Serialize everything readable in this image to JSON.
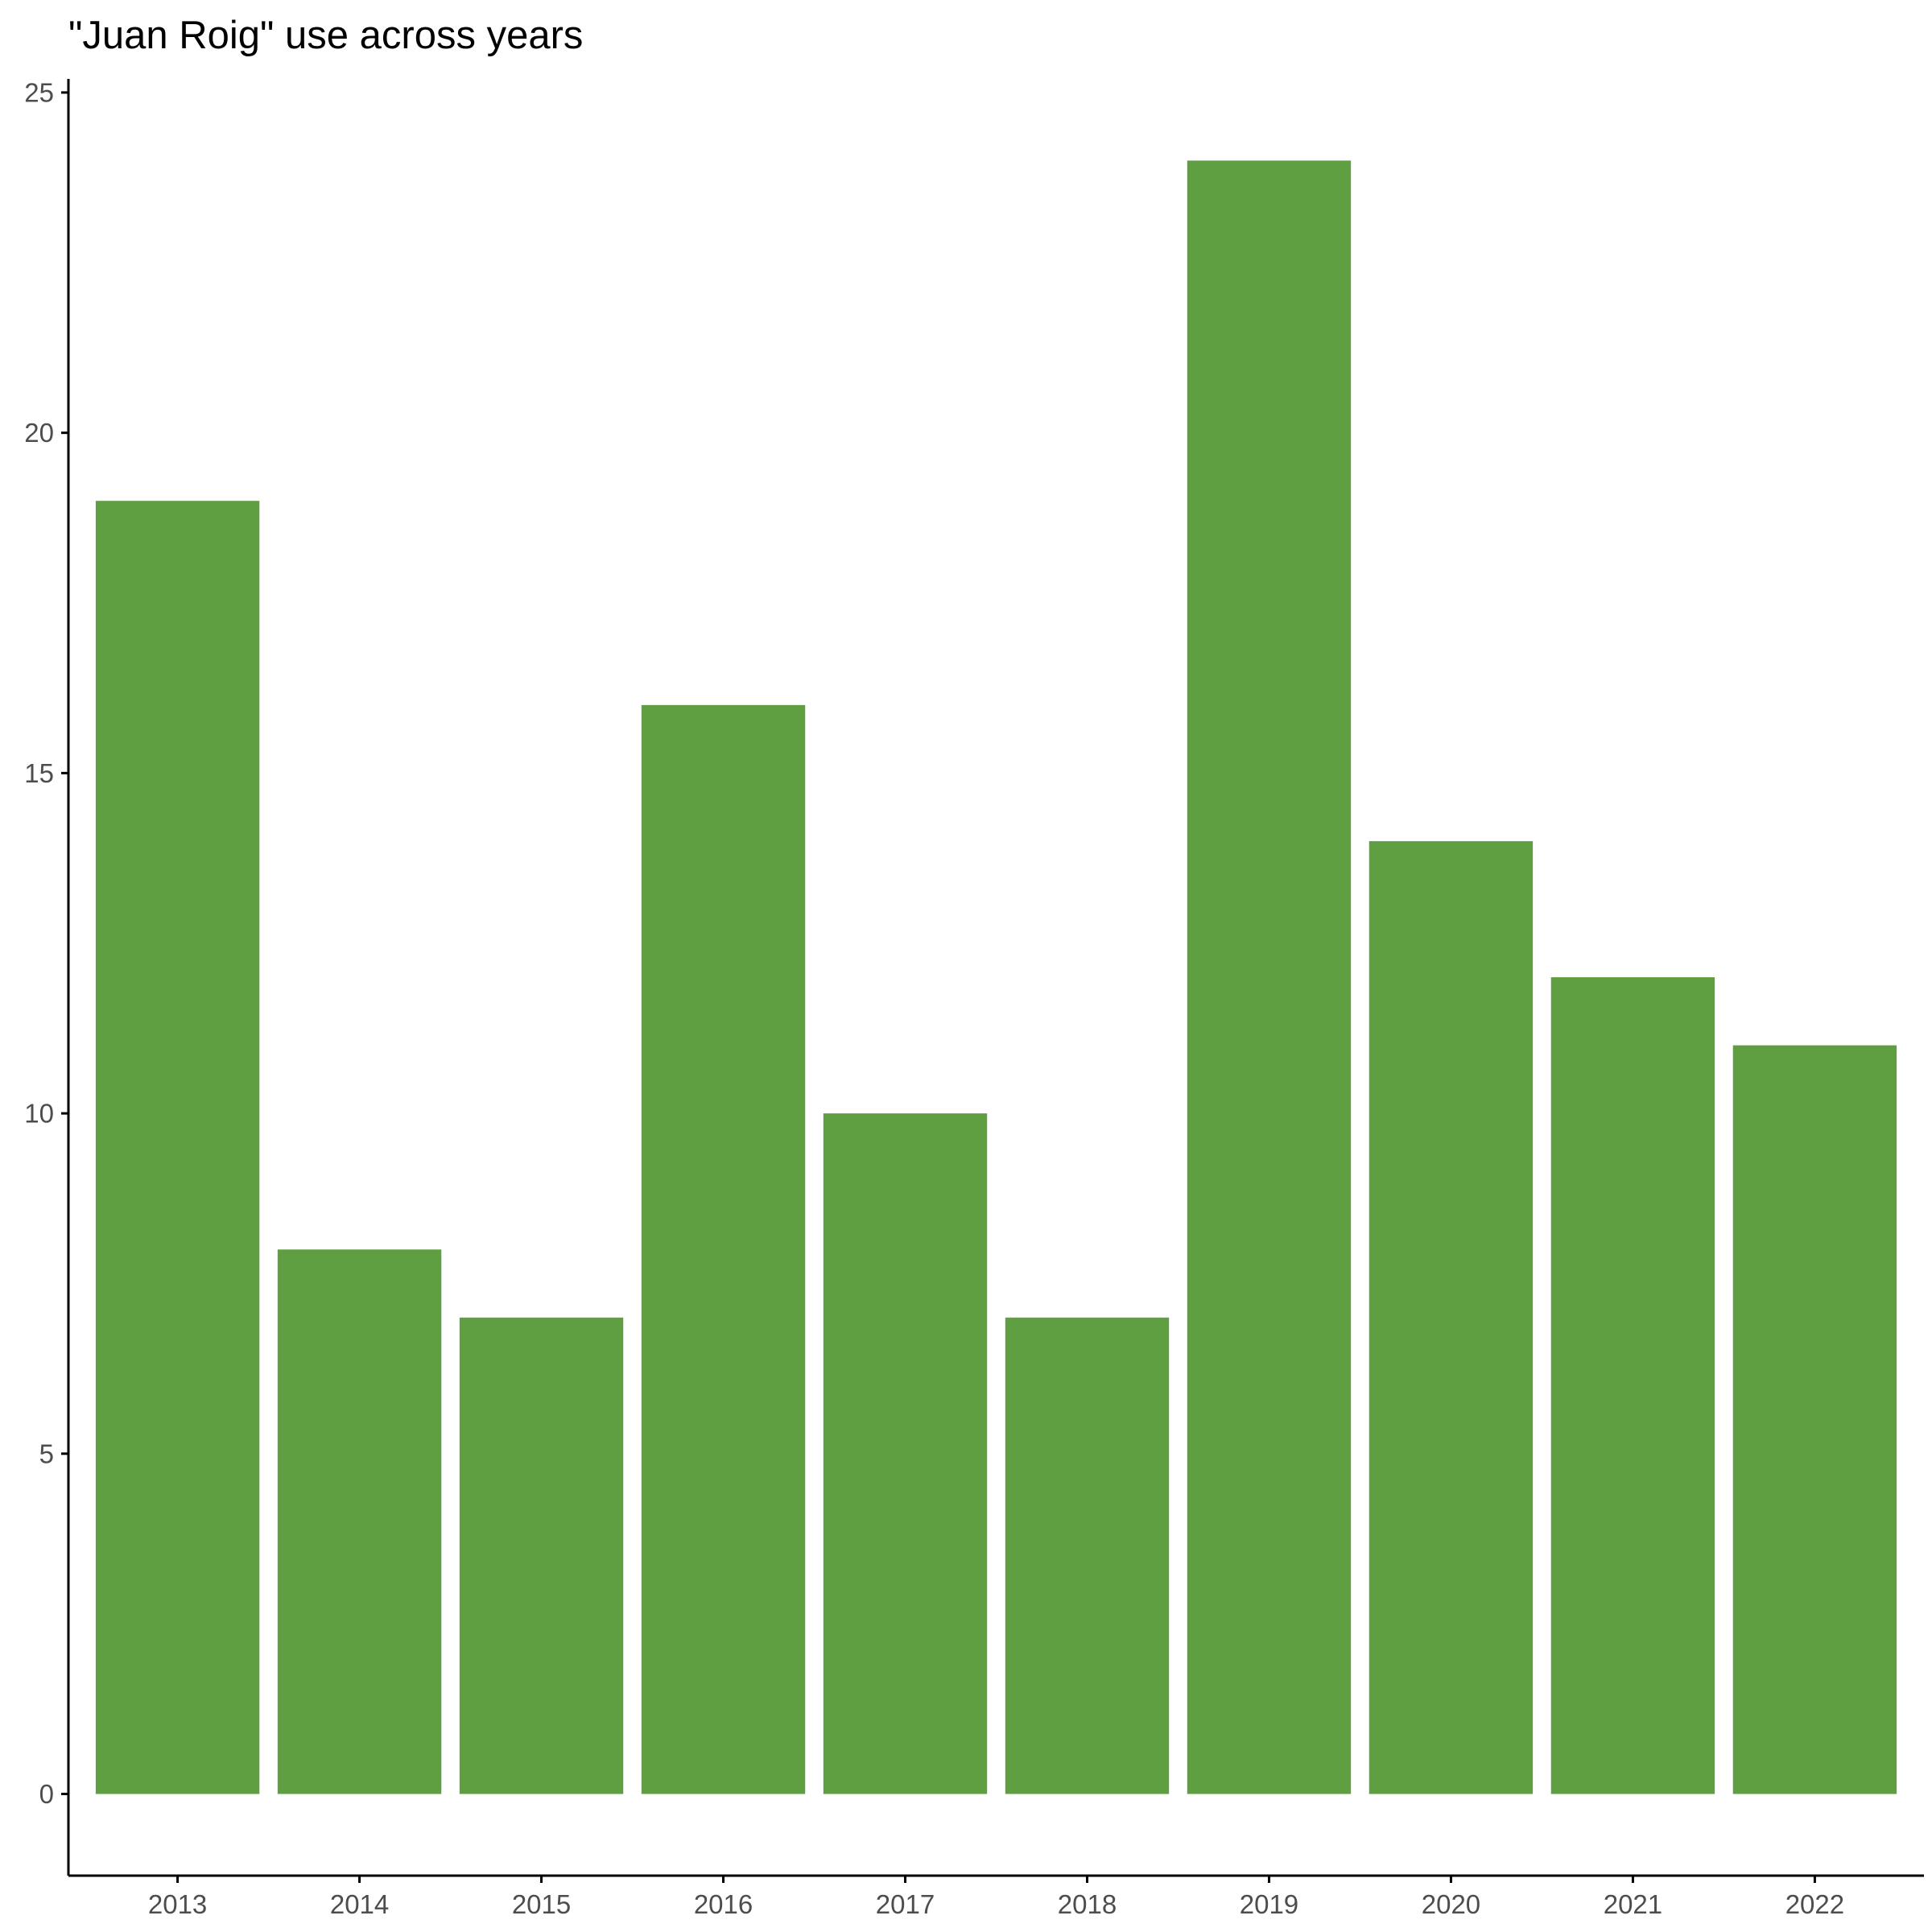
{
  "chart_data": {
    "type": "bar",
    "title": "\"Juan Roig\" use across years",
    "xlabel": "",
    "ylabel": "",
    "categories": [
      "2013",
      "2014",
      "2015",
      "2016",
      "2017",
      "2018",
      "2019",
      "2020",
      "2021",
      "2022"
    ],
    "values": [
      19,
      8,
      7,
      16,
      10,
      7,
      24,
      14,
      12,
      11
    ],
    "ylim": [
      -1.2,
      25.2
    ],
    "yticks": [
      0,
      5,
      10,
      15,
      20,
      25
    ],
    "grid": false,
    "legend": "none",
    "bar_color": "#5f9f42"
  }
}
